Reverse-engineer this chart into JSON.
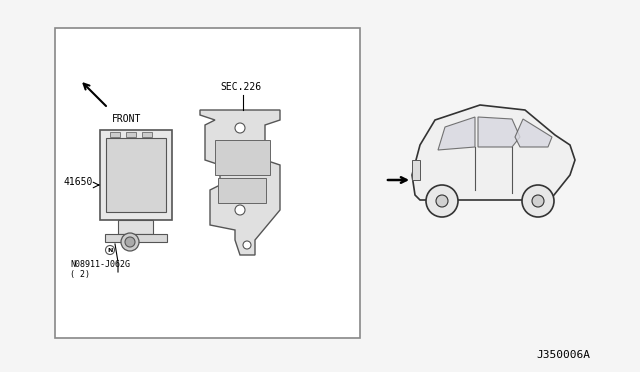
{
  "bg_color": "#f5f5f5",
  "box_color": "#ffffff",
  "box_border_color": "#888888",
  "text_color": "#000000",
  "diagram_label": "J350006A",
  "part_labels": {
    "sec": "SEC.226",
    "part1": "41650",
    "bolt": "N08911-J062G\n( 2)"
  },
  "front_arrow_text": "FRONT"
}
